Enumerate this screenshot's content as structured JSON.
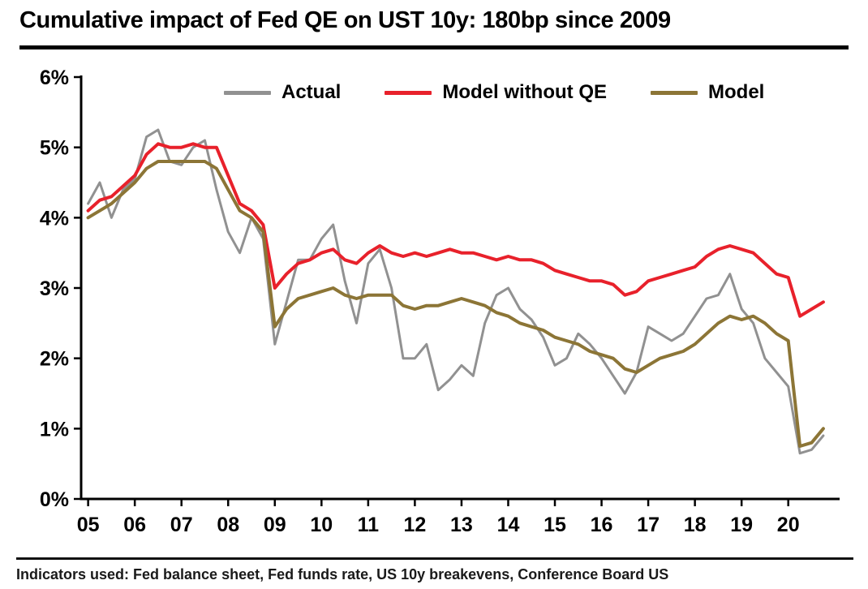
{
  "title": "Cumulative impact of Fed QE on UST 10y: 180bp since 2009",
  "footer": "Indicators used: Fed balance sheet, Fed funds rate, US 10y breakevens, Conference Board US",
  "chart_data": {
    "type": "line",
    "title": "Cumulative impact of Fed QE on UST 10y: 180bp since 2009",
    "xlabel": "",
    "ylabel": "",
    "xlim": [
      2004.85,
      2021.1
    ],
    "ylim": [
      0,
      6
    ],
    "grid": false,
    "legend_position": "top-inside",
    "xticks": [
      "05",
      "06",
      "07",
      "08",
      "09",
      "10",
      "11",
      "12",
      "13",
      "14",
      "15",
      "16",
      "17",
      "18",
      "19",
      "20"
    ],
    "xtick_values": [
      2005,
      2006,
      2007,
      2008,
      2009,
      2010,
      2011,
      2012,
      2013,
      2014,
      2015,
      2016,
      2017,
      2018,
      2019,
      2020
    ],
    "yticks": [
      "0%",
      "1%",
      "2%",
      "3%",
      "4%",
      "5%",
      "6%"
    ],
    "ytick_values": [
      0,
      1,
      2,
      3,
      4,
      5,
      6
    ],
    "x": [
      2005.0,
      2005.25,
      2005.5,
      2005.75,
      2006.0,
      2006.25,
      2006.5,
      2006.75,
      2007.0,
      2007.25,
      2007.5,
      2007.75,
      2008.0,
      2008.25,
      2008.5,
      2008.75,
      2009.0,
      2009.25,
      2009.5,
      2009.75,
      2010.0,
      2010.25,
      2010.5,
      2010.75,
      2011.0,
      2011.25,
      2011.5,
      2011.75,
      2012.0,
      2012.25,
      2012.5,
      2012.75,
      2013.0,
      2013.25,
      2013.5,
      2013.75,
      2014.0,
      2014.25,
      2014.5,
      2014.75,
      2015.0,
      2015.25,
      2015.5,
      2015.75,
      2016.0,
      2016.25,
      2016.5,
      2016.75,
      2017.0,
      2017.25,
      2017.5,
      2017.75,
      2018.0,
      2018.25,
      2018.5,
      2018.75,
      2019.0,
      2019.25,
      2019.5,
      2019.75,
      2020.0,
      2020.25,
      2020.5,
      2020.75
    ],
    "series": [
      {
        "name": "Actual",
        "color": "#919191",
        "width": 3,
        "values": [
          4.2,
          4.5,
          4.0,
          4.4,
          4.55,
          5.15,
          5.25,
          4.8,
          4.75,
          5.0,
          5.1,
          4.4,
          3.8,
          3.5,
          4.0,
          3.7,
          2.2,
          2.8,
          3.4,
          3.4,
          3.7,
          3.9,
          3.1,
          2.5,
          3.35,
          3.55,
          3.0,
          2.0,
          2.0,
          2.2,
          1.55,
          1.7,
          1.9,
          1.75,
          2.5,
          2.9,
          3.0,
          2.7,
          2.55,
          2.3,
          1.9,
          2.0,
          2.35,
          2.2,
          2.0,
          1.75,
          1.5,
          1.8,
          2.45,
          2.35,
          2.25,
          2.35,
          2.6,
          2.85,
          2.9,
          3.2,
          2.7,
          2.5,
          2.0,
          1.8,
          1.6,
          0.65,
          0.7,
          0.9
        ]
      },
      {
        "name": "Model without QE",
        "color": "#e8212b",
        "width": 4,
        "values": [
          4.1,
          4.25,
          4.3,
          4.45,
          4.6,
          4.9,
          5.05,
          5.0,
          5.0,
          5.05,
          5.0,
          5.0,
          4.6,
          4.2,
          4.1,
          3.9,
          3.0,
          3.2,
          3.35,
          3.4,
          3.5,
          3.55,
          3.4,
          3.35,
          3.5,
          3.6,
          3.5,
          3.45,
          3.5,
          3.45,
          3.5,
          3.55,
          3.5,
          3.5,
          3.45,
          3.4,
          3.45,
          3.4,
          3.4,
          3.35,
          3.25,
          3.2,
          3.15,
          3.1,
          3.1,
          3.05,
          2.9,
          2.95,
          3.1,
          3.15,
          3.2,
          3.25,
          3.3,
          3.45,
          3.55,
          3.6,
          3.55,
          3.5,
          3.35,
          3.2,
          3.15,
          2.6,
          2.7,
          2.8
        ]
      },
      {
        "name": "Model",
        "color": "#8c7536",
        "width": 4,
        "values": [
          4.0,
          4.1,
          4.2,
          4.35,
          4.5,
          4.7,
          4.8,
          4.8,
          4.8,
          4.8,
          4.8,
          4.7,
          4.4,
          4.1,
          4.0,
          3.8,
          2.45,
          2.7,
          2.85,
          2.9,
          2.95,
          3.0,
          2.9,
          2.85,
          2.9,
          2.9,
          2.9,
          2.75,
          2.7,
          2.75,
          2.75,
          2.8,
          2.85,
          2.8,
          2.75,
          2.65,
          2.6,
          2.5,
          2.45,
          2.4,
          2.3,
          2.25,
          2.2,
          2.1,
          2.05,
          2.0,
          1.85,
          1.8,
          1.9,
          2.0,
          2.05,
          2.1,
          2.2,
          2.35,
          2.5,
          2.6,
          2.55,
          2.6,
          2.5,
          2.35,
          2.25,
          0.75,
          0.8,
          1.0
        ]
      }
    ]
  }
}
